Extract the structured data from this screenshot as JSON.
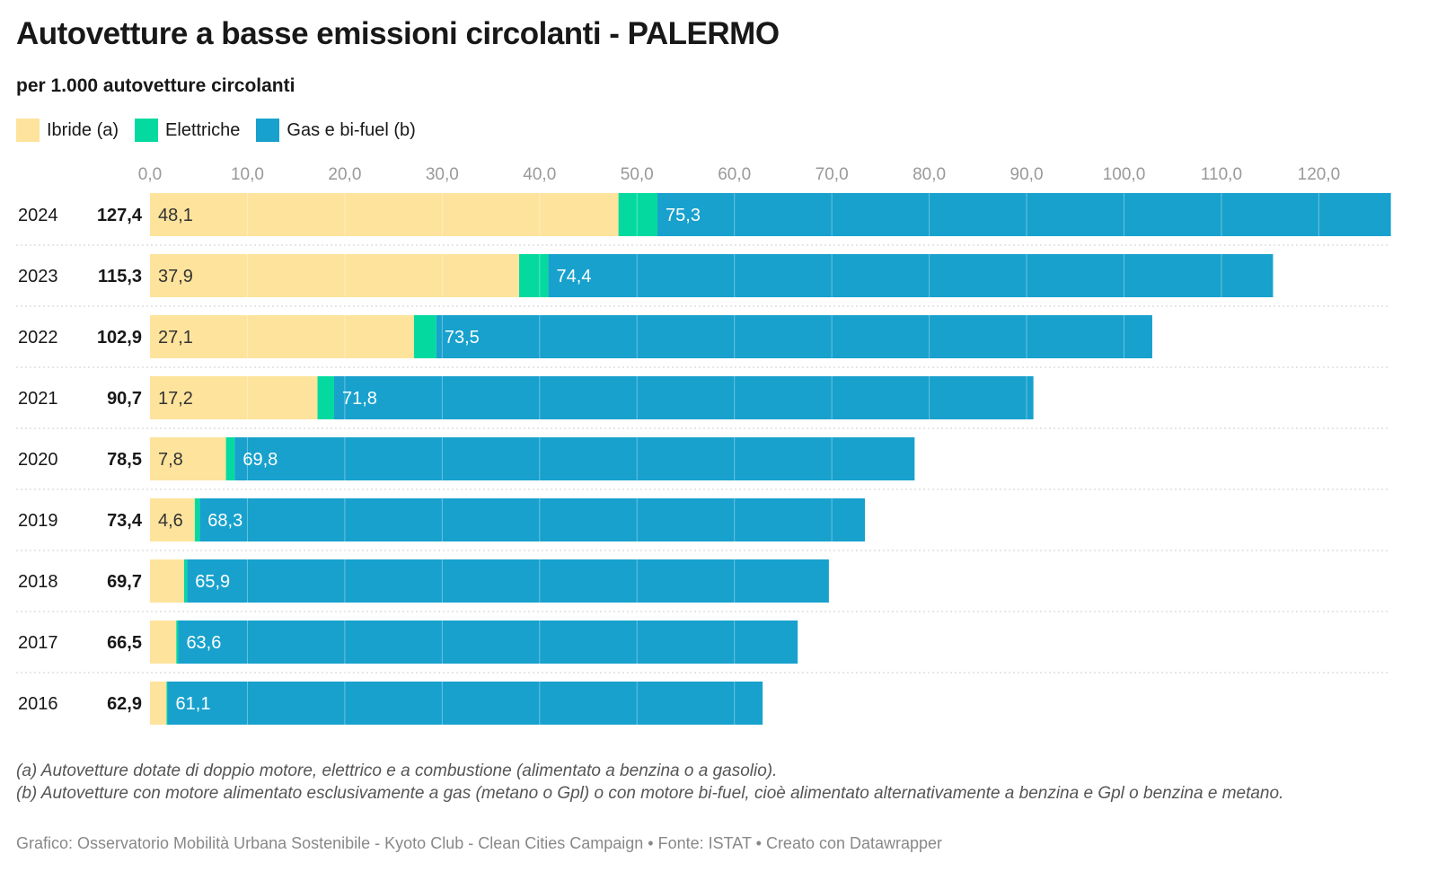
{
  "title": "Autovetture a basse emissioni circolanti - PALERMO",
  "subtitle": "per 1.000 autovetture circolanti",
  "notes": [
    "(a) Autovetture dotate di doppio motore, elettrico e a combustione (alimentato a benzina o a gasolio).",
    "(b) Autovetture con motore alimentato esclusivamente a gas (metano o Gpl) o con motore bi-fuel, cioè alimentato alternativamente a benzina e Gpl o benzina e metano."
  ],
  "footer": "Grafico: Osservatorio Mobilità Urbana Sostenibile - Kyoto Club - Clean Cities Campaign • Fonte: ISTAT • Creato con Datawrapper",
  "chart_data": {
    "type": "bar",
    "stacked": true,
    "orientation": "horizontal",
    "title": "Autovetture a basse emissioni circolanti - PALERMO",
    "subtitle": "per 1.000 autovetture circolanti",
    "xlim": [
      0,
      127.4
    ],
    "xticks": [
      "0,0",
      "10,0",
      "20,0",
      "30,0",
      "40,0",
      "50,0",
      "60,0",
      "70,0",
      "80,0",
      "90,0",
      "100,0",
      "110,0",
      "120,0"
    ],
    "legend_position": "top-left",
    "categories": [
      "2024",
      "2023",
      "2022",
      "2021",
      "2020",
      "2019",
      "2018",
      "2017",
      "2016"
    ],
    "totals": [
      "127,4",
      "115,3",
      "102,9",
      "90,7",
      "78,5",
      "73,4",
      "69,7",
      "66,5",
      "62,9"
    ],
    "series": [
      {
        "name": "Ibride (a)",
        "color": "#fee39c",
        "values": [
          48.1,
          37.9,
          27.1,
          17.2,
          7.8,
          4.6,
          3.5,
          2.7,
          1.7
        ],
        "labels": [
          "48,1",
          "37,9",
          "27,1",
          "17,2",
          "7,8",
          "4,6",
          "",
          "",
          ""
        ]
      },
      {
        "name": "Elettriche",
        "color": "#04da9f",
        "values": [
          4.0,
          3.0,
          2.3,
          1.7,
          0.9,
          0.5,
          0.3,
          0.2,
          0.1
        ],
        "labels": [
          "",
          "",
          "",
          "",
          "",
          "",
          "",
          "",
          ""
        ]
      },
      {
        "name": "Gas e bi-fuel (b)",
        "color": "#18a1cd",
        "values": [
          75.3,
          74.4,
          73.5,
          71.8,
          69.8,
          68.3,
          65.9,
          63.6,
          61.1
        ],
        "labels": [
          "75,3",
          "74,4",
          "73,5",
          "71,8",
          "69,8",
          "68,3",
          "65,9",
          "63,6",
          "61,1"
        ]
      }
    ]
  }
}
